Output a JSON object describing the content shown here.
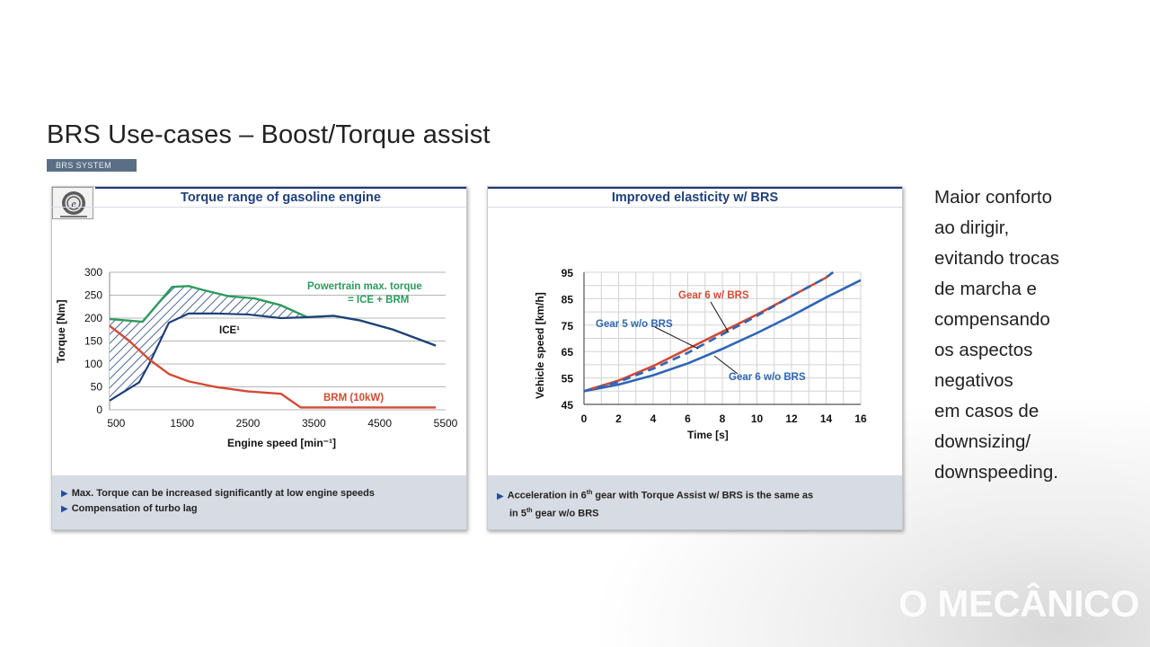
{
  "slide": {
    "title": "BRS Use-cases – Boost/Torque assist",
    "tag": "BRS SYSTEM"
  },
  "side_text": {
    "lines": [
      "Maior conforto",
      "ao dirigir,",
      "evitando trocas",
      "de marcha e",
      "compensando",
      "os aspectos",
      "negativos",
      "em casos de",
      "downsizing/",
      "downspeeding."
    ]
  },
  "watermark": "O MECÂNICO",
  "left_panel": {
    "header": "Torque range of gasoline engine",
    "logo_icon": "e-engine-icon",
    "notes": [
      "Max. Torque can be increased significantly at low engine speeds",
      "Compensation of turbo lag"
    ]
  },
  "right_panel": {
    "header": "Improved elasticity w/ BRS",
    "note_line1_pre": "Acceleration in 6",
    "note_line1_sup": "th",
    "note_line1_post": " gear with Torque Assist w/ BRS is the same as",
    "note_line2_pre": "in 5",
    "note_line2_sup": "th",
    "note_line2_post": " gear w/o BRS"
  },
  "chart_data": [
    {
      "type": "line",
      "title": "Torque range of gasoline engine",
      "xlabel": "Engine speed  [min⁻¹]",
      "ylabel": "Torque  [Nm]",
      "xlim": [
        400,
        5500
      ],
      "ylim": [
        0,
        300
      ],
      "xticks": [
        500,
        1500,
        2500,
        3500,
        4500,
        5500
      ],
      "yticks": [
        0,
        50,
        100,
        150,
        200,
        250,
        300
      ],
      "grid": true,
      "annotations": [
        "Powertrain max. torque",
        "= ICE + BRM",
        "ICE¹",
        "BRM (10kW)"
      ],
      "series": [
        {
          "name": "Powertrain max. torque = ICE + BRM",
          "color": "#2e9a5e",
          "x": [
            400,
            900,
            1350,
            1600,
            1800,
            2200,
            2600,
            3000,
            3400,
            3800,
            4200,
            4700,
            5350
          ],
          "y": [
            198,
            192,
            268,
            270,
            262,
            248,
            243,
            228,
            202,
            205,
            195,
            175,
            140
          ]
        },
        {
          "name": "ICE",
          "color": "#1f3f7a",
          "x": [
            400,
            850,
            1000,
            1300,
            1600,
            2000,
            2500,
            3000,
            3400,
            3800,
            4200,
            4700,
            5350
          ],
          "y": [
            20,
            60,
            100,
            190,
            210,
            210,
            208,
            200,
            202,
            205,
            195,
            175,
            140
          ]
        },
        {
          "name": "BRM (10kW)",
          "color": "#d24a34",
          "x": [
            400,
            700,
            1000,
            1300,
            1600,
            2000,
            2500,
            3000,
            3300,
            5350
          ],
          "y": [
            183,
            150,
            110,
            78,
            62,
            50,
            40,
            35,
            5,
            5
          ]
        }
      ]
    },
    {
      "type": "line",
      "title": "Improved elasticity w/ BRS",
      "xlabel": "Time [s]",
      "ylabel": "Vehicle speed [km/h]",
      "xlim": [
        0,
        16
      ],
      "ylim": [
        45,
        95
      ],
      "xticks": [
        0,
        2,
        4,
        6,
        8,
        10,
        12,
        14,
        16
      ],
      "yticks": [
        45,
        55,
        65,
        75,
        85,
        95
      ],
      "grid": true,
      "series": [
        {
          "name": "Gear 6 w/ BRS",
          "color": "#d24a34",
          "style": "solid",
          "x": [
            0,
            2,
            4,
            6,
            8,
            10,
            12,
            14,
            14.4
          ],
          "y": [
            50,
            54,
            59.5,
            66,
            72.5,
            79,
            86,
            93,
            95
          ]
        },
        {
          "name": "Gear 5 w/o BRS",
          "color": "#2f66b5",
          "style": "dashed",
          "x": [
            0,
            2,
            4,
            6,
            8,
            10,
            12,
            14,
            14.4
          ],
          "y": [
            50,
            53.5,
            58.5,
            64.5,
            71.5,
            78.5,
            86,
            93,
            95
          ]
        },
        {
          "name": "Gear 6 w/o BRS",
          "color": "#2f66b5",
          "style": "solid",
          "x": [
            0,
            2,
            4,
            6,
            8,
            10,
            12,
            14,
            16
          ],
          "y": [
            50,
            52.5,
            56,
            60.5,
            66,
            72,
            78.5,
            85.5,
            92
          ]
        }
      ]
    }
  ]
}
